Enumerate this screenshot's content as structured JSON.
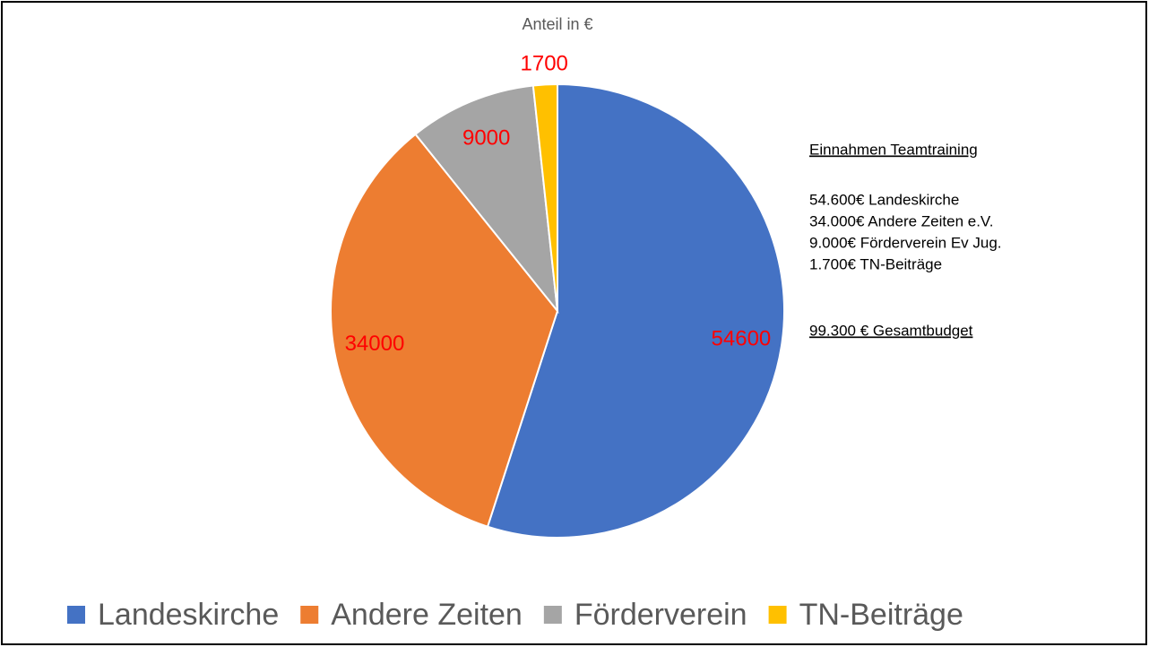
{
  "chart_data": {
    "type": "pie",
    "title": "Anteil in €",
    "categories": [
      "Landeskirche",
      "Andere Zeiten",
      "Förderverein",
      "TN-Beiträge"
    ],
    "values": [
      54600,
      34000,
      9000,
      1700
    ],
    "colors": [
      "#4472c4",
      "#ed7d31",
      "#a5a5a5",
      "#ffc000"
    ],
    "label_color": "#ff0000",
    "legend": "bottom",
    "annotations": {
      "heading": "Einnahmen Teamtraining",
      "lines": [
        "54.600€ Landeskirche",
        "34.000€ Andere Zeiten e.V.",
        "9.000€ Förderverein Ev Jug.",
        "1.700€ TN-Beiträge"
      ],
      "total": "99.300 € Gesamtbudget"
    }
  }
}
